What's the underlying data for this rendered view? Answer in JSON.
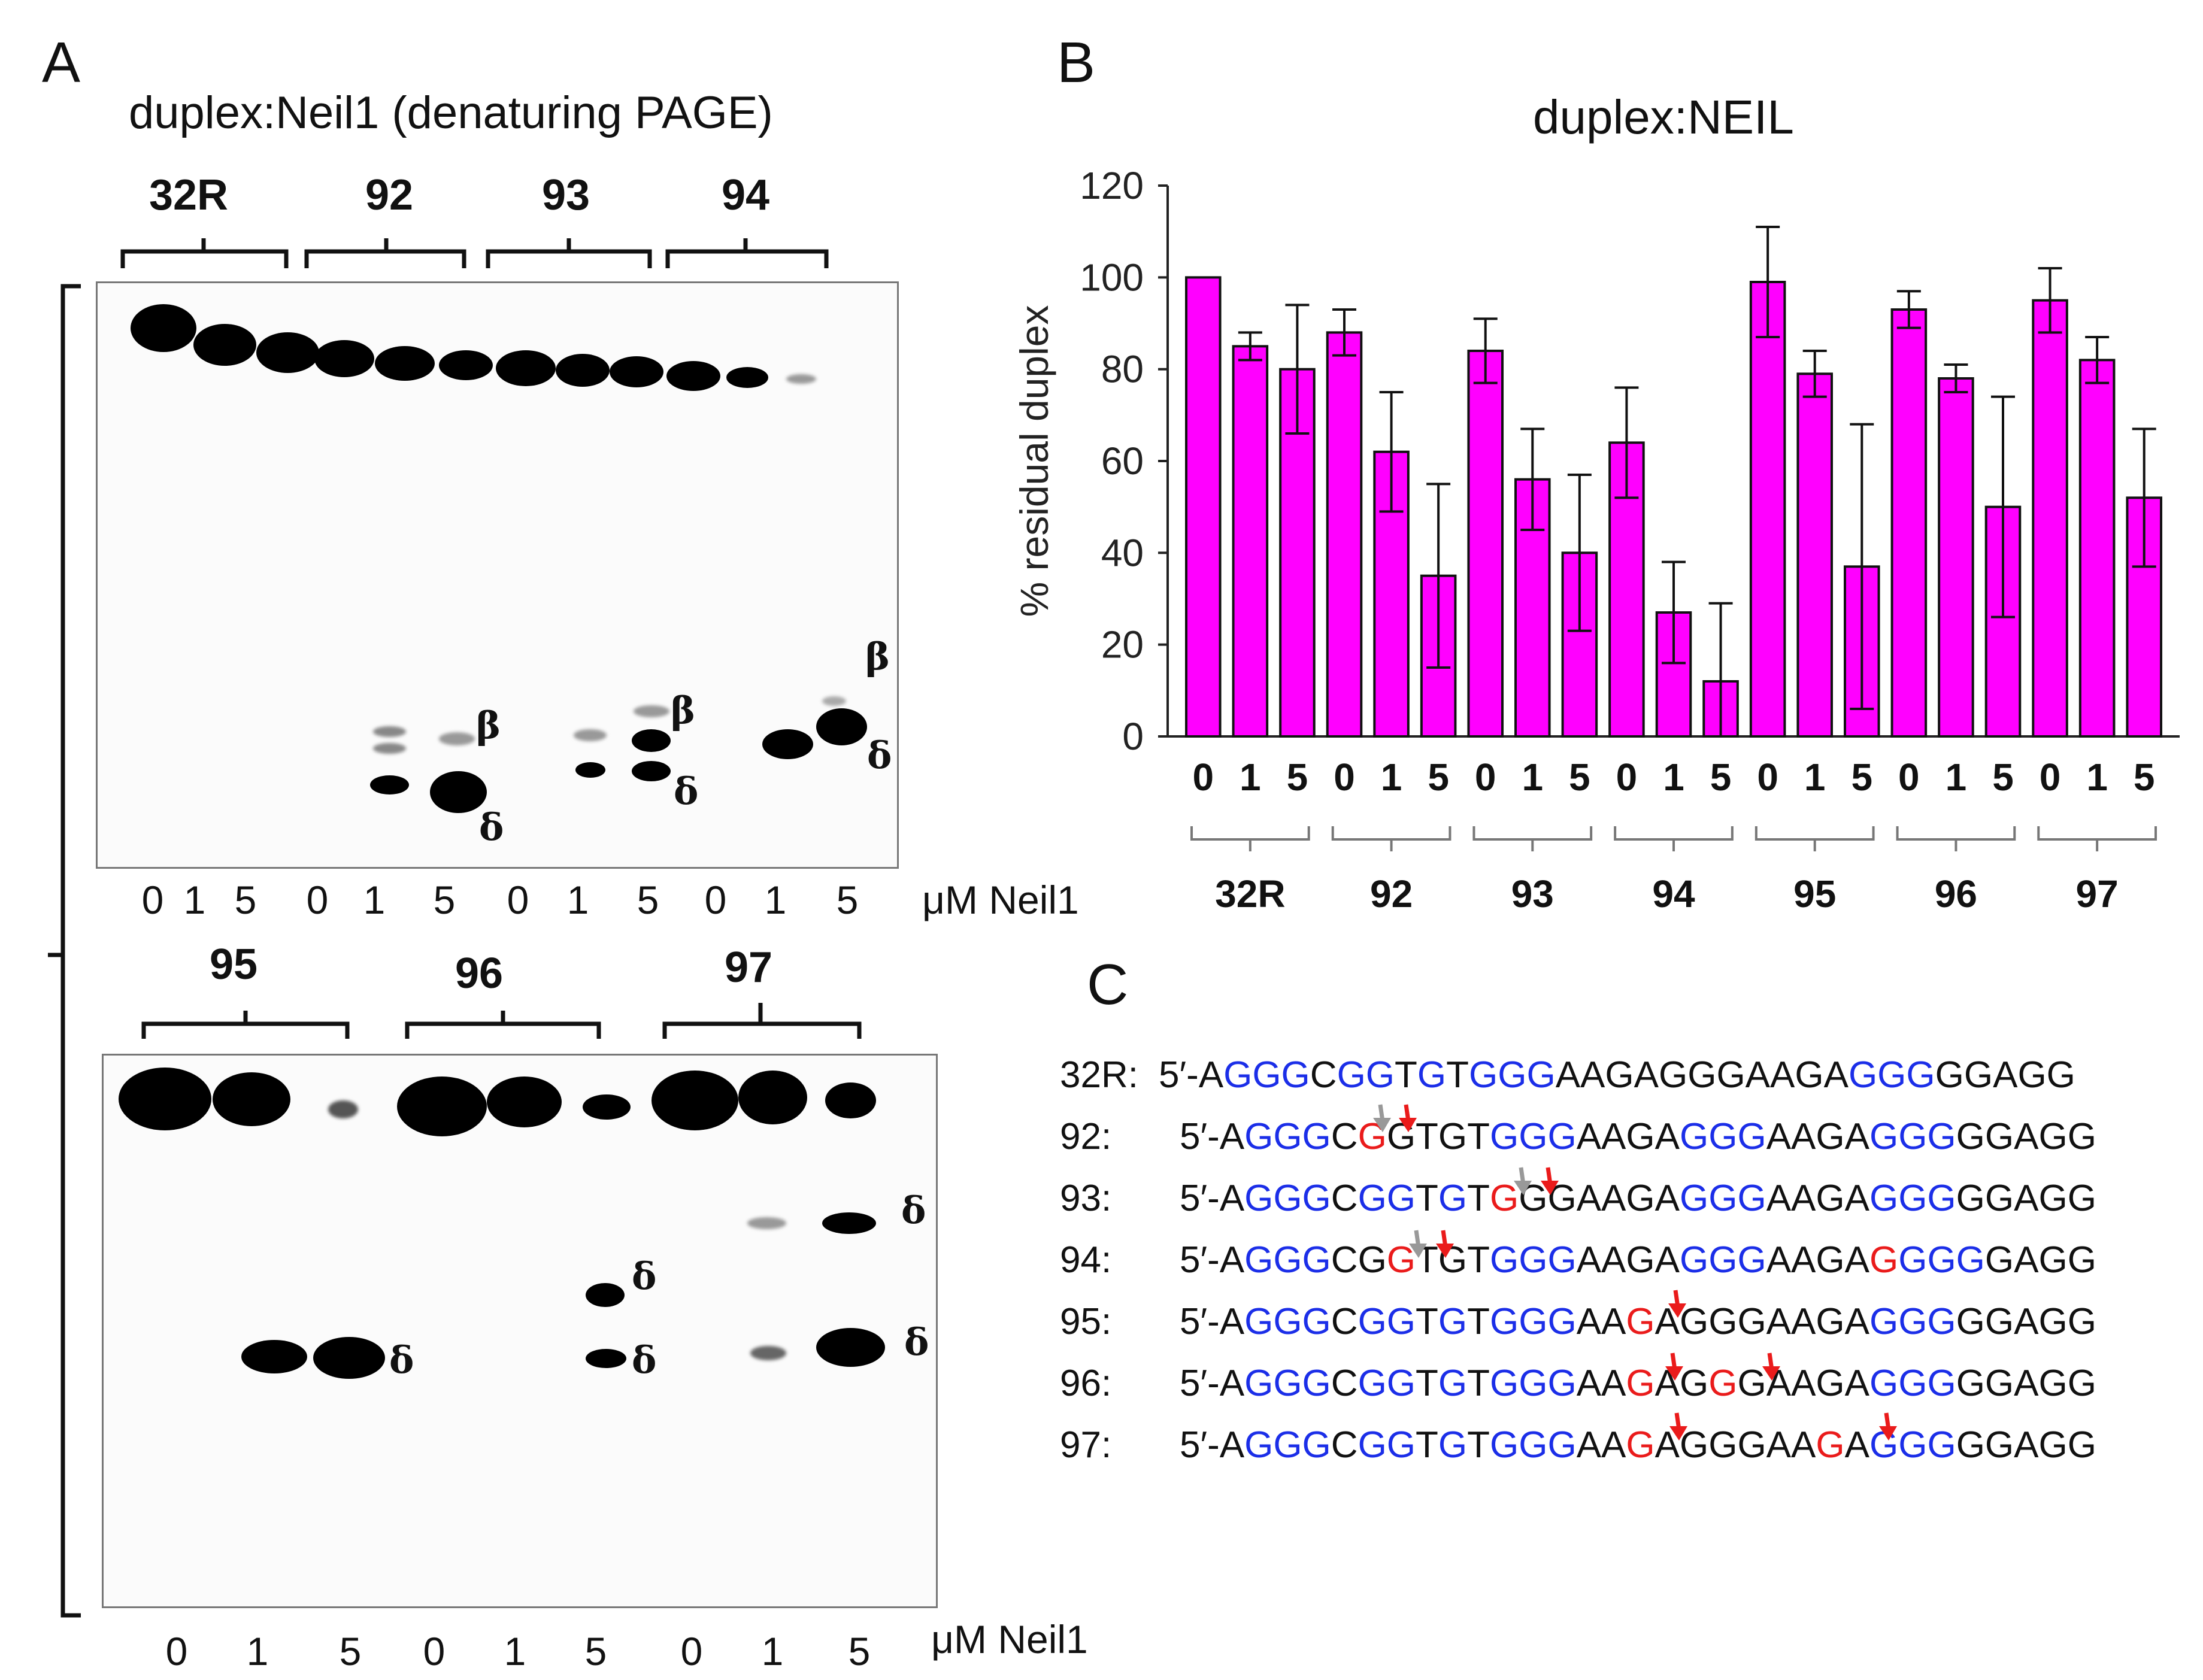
{
  "panel_labels": {
    "a": "A",
    "b": "B",
    "c": "C"
  },
  "panel_a": {
    "title": "duplex:Neil1 (denaturing PAGE)",
    "top_samples": [
      "32R",
      "92",
      "93",
      "94"
    ],
    "bottom_samples": [
      "95",
      "96",
      "97"
    ],
    "top_lanes": [
      "0",
      "1",
      "5",
      "0",
      "1",
      "5",
      "0",
      "1",
      "5",
      "0",
      "1",
      "5"
    ],
    "bottom_lanes": [
      "0",
      "1",
      "5",
      "0",
      "1",
      "5",
      "0",
      "1",
      "5"
    ],
    "unit_label": "μM Neil1",
    "band_labels": {
      "top": [
        "β",
        "δ",
        "β",
        "δ",
        "β",
        "δ"
      ],
      "bottom": [
        "δ",
        "δ",
        "δ",
        "δ",
        "δ"
      ]
    }
  },
  "chart_data": {
    "type": "bar",
    "title": "duplex:NEIL",
    "ylabel": "% residual  duplex",
    "xlabel": "",
    "ylim": [
      0,
      120
    ],
    "yticks": [
      0,
      20,
      40,
      60,
      80,
      100,
      120
    ],
    "bar_color": "#ff00ff",
    "groups": [
      "32R",
      "92",
      "93",
      "94",
      "95",
      "96",
      "97"
    ],
    "categories": [
      "0",
      "1",
      "5"
    ],
    "series": [
      {
        "name": "32R",
        "values": [
          100,
          85,
          80
        ],
        "errors": [
          0,
          3,
          14
        ]
      },
      {
        "name": "92",
        "values": [
          88,
          62,
          35
        ],
        "errors": [
          5,
          13,
          20
        ]
      },
      {
        "name": "93",
        "values": [
          84,
          56,
          40
        ],
        "errors": [
          7,
          11,
          17
        ]
      },
      {
        "name": "94",
        "values": [
          64,
          27,
          12
        ],
        "errors": [
          12,
          11,
          17
        ]
      },
      {
        "name": "95",
        "values": [
          99,
          79,
          37
        ],
        "errors": [
          12,
          5,
          31
        ]
      },
      {
        "name": "96",
        "values": [
          93,
          78,
          50
        ],
        "errors": [
          4,
          3,
          24
        ]
      },
      {
        "name": "97",
        "values": [
          95,
          82,
          52
        ],
        "errors": [
          7,
          5,
          15
        ]
      }
    ]
  },
  "panel_c": {
    "sequences": [
      {
        "name": "32R:",
        "segments": [
          [
            "5′-A",
            "k"
          ],
          [
            "GGG",
            "b"
          ],
          [
            "C",
            "k"
          ],
          [
            "GG",
            "b"
          ],
          [
            "T",
            "k"
          ],
          [
            "G",
            "b"
          ],
          [
            "T",
            "k"
          ],
          [
            "GGG",
            "b"
          ],
          [
            "AAGAGGGAAGA",
            "k"
          ],
          [
            "GGG",
            "b"
          ],
          [
            "GGAGG",
            "k"
          ]
        ]
      },
      {
        "name": "92:",
        "segments": [
          [
            "5′-A",
            "k"
          ],
          [
            "GGG",
            "b"
          ],
          [
            "C",
            "k"
          ],
          [
            "G",
            "r"
          ],
          [
            "GTGT",
            "k"
          ],
          [
            "GGG",
            "b"
          ],
          [
            "AAGA",
            "k"
          ],
          [
            "GGG",
            "b"
          ],
          [
            "AAGA",
            "k"
          ],
          [
            "GGG",
            "b"
          ],
          [
            "GGAGG",
            "k"
          ]
        ]
      },
      {
        "name": "93:",
        "segments": [
          [
            "5′-A",
            "k"
          ],
          [
            "GGG",
            "b"
          ],
          [
            "C",
            "k"
          ],
          [
            "GG",
            "b"
          ],
          [
            "T",
            "k"
          ],
          [
            "G",
            "b"
          ],
          [
            "T",
            "k"
          ],
          [
            "G",
            "r"
          ],
          [
            "GGAAGA",
            "k"
          ],
          [
            "GGG",
            "b"
          ],
          [
            "AAGA",
            "k"
          ],
          [
            "GGG",
            "b"
          ],
          [
            "GGAGG",
            "k"
          ]
        ]
      },
      {
        "name": "94:",
        "segments": [
          [
            "5′-A",
            "k"
          ],
          [
            "GGG",
            "b"
          ],
          [
            "CG",
            "k"
          ],
          [
            "G",
            "r"
          ],
          [
            "TGT",
            "k"
          ],
          [
            "GGG",
            "b"
          ],
          [
            "AAGA",
            "k"
          ],
          [
            "GGG",
            "b"
          ],
          [
            "AAGA",
            "k"
          ],
          [
            "G",
            "r"
          ],
          [
            "GGG",
            "b"
          ],
          [
            "GAGG",
            "k"
          ]
        ]
      },
      {
        "name": "95:",
        "segments": [
          [
            "5′-A",
            "k"
          ],
          [
            "GGG",
            "b"
          ],
          [
            "C",
            "k"
          ],
          [
            "GG",
            "b"
          ],
          [
            "T",
            "k"
          ],
          [
            "G",
            "b"
          ],
          [
            "T",
            "k"
          ],
          [
            "GGG",
            "b"
          ],
          [
            "AA",
            "k"
          ],
          [
            "G",
            "r"
          ],
          [
            "AGGGAAGA",
            "k"
          ],
          [
            "GGG",
            "b"
          ],
          [
            "GGAGG",
            "k"
          ]
        ]
      },
      {
        "name": "96:",
        "segments": [
          [
            "5′-A",
            "k"
          ],
          [
            "GGG",
            "b"
          ],
          [
            "C",
            "k"
          ],
          [
            "GG",
            "b"
          ],
          [
            "T",
            "k"
          ],
          [
            "G",
            "b"
          ],
          [
            "T",
            "k"
          ],
          [
            "GGG",
            "b"
          ],
          [
            "AA",
            "k"
          ],
          [
            "G",
            "r"
          ],
          [
            "AG",
            "k"
          ],
          [
            "G",
            "r"
          ],
          [
            "GAAGA",
            "k"
          ],
          [
            "GGG",
            "b"
          ],
          [
            "GGAGG",
            "k"
          ]
        ]
      },
      {
        "name": "97:",
        "segments": [
          [
            "5′-A",
            "k"
          ],
          [
            "GGG",
            "b"
          ],
          [
            "C",
            "k"
          ],
          [
            "GG",
            "b"
          ],
          [
            "T",
            "k"
          ],
          [
            "G",
            "b"
          ],
          [
            "T",
            "k"
          ],
          [
            "GGG",
            "b"
          ],
          [
            "AA",
            "k"
          ],
          [
            "G",
            "r"
          ],
          [
            "AGGGAA",
            "k"
          ],
          [
            "G",
            "r"
          ],
          [
            "A",
            "k"
          ],
          [
            "GGG",
            "b"
          ],
          [
            "GGAGG",
            "k"
          ]
        ]
      }
    ]
  }
}
